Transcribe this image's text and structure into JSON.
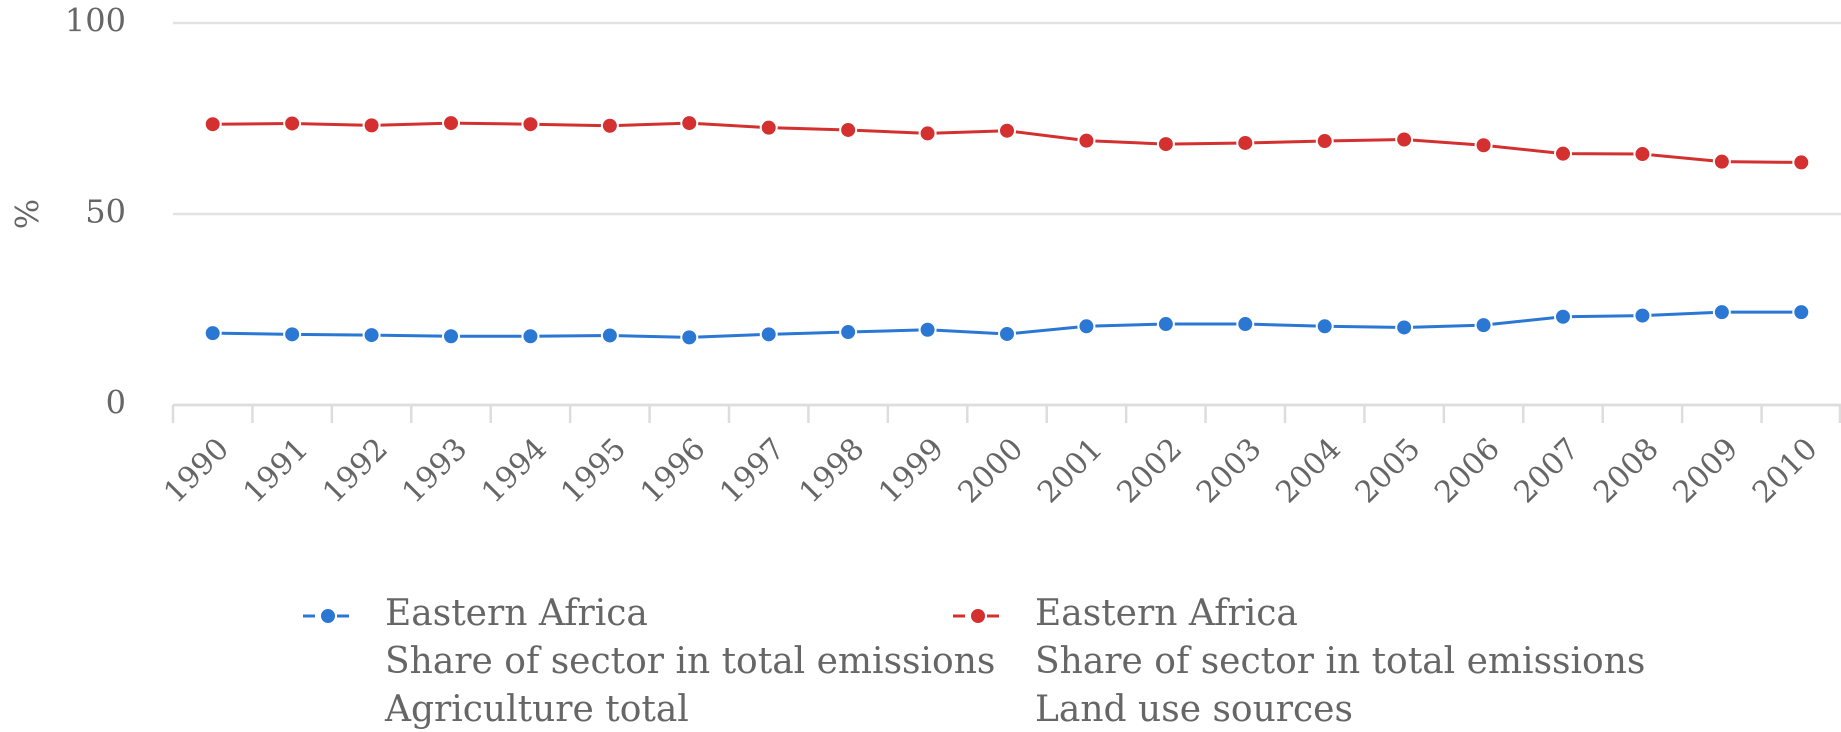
{
  "chart_data": {
    "type": "line",
    "ylabel": "%",
    "categories": [
      "1990",
      "1991",
      "1992",
      "1993",
      "1994",
      "1995",
      "1996",
      "1997",
      "1998",
      "1999",
      "2000",
      "2001",
      "2002",
      "2003",
      "2004",
      "2005",
      "2006",
      "2007",
      "2008",
      "2009",
      "2010"
    ],
    "series": [
      {
        "name": "Eastern Africa",
        "element": "Share of sector in total emissions",
        "item": "Agriculture total",
        "color": "#2a77d4",
        "values": [
          18.8,
          18.5,
          18.3,
          18.0,
          18.0,
          18.2,
          17.7,
          18.5,
          19.1,
          19.7,
          18.6,
          20.6,
          21.2,
          21.2,
          20.6,
          20.3,
          20.9,
          23.1,
          23.4,
          24.3,
          24.3
        ]
      },
      {
        "name": "Eastern Africa",
        "element": "Share of sector in total emissions",
        "item": "Land use sources",
        "color": "#d3302f",
        "values": [
          73.5,
          73.7,
          73.2,
          73.8,
          73.5,
          73.1,
          73.8,
          72.6,
          72.0,
          71.1,
          71.8,
          69.2,
          68.3,
          68.6,
          69.1,
          69.5,
          68.0,
          65.8,
          65.7,
          63.7,
          63.5
        ]
      }
    ],
    "ylim": [
      0,
      100
    ],
    "yticks": [
      0,
      50,
      100
    ],
    "grid": true
  }
}
